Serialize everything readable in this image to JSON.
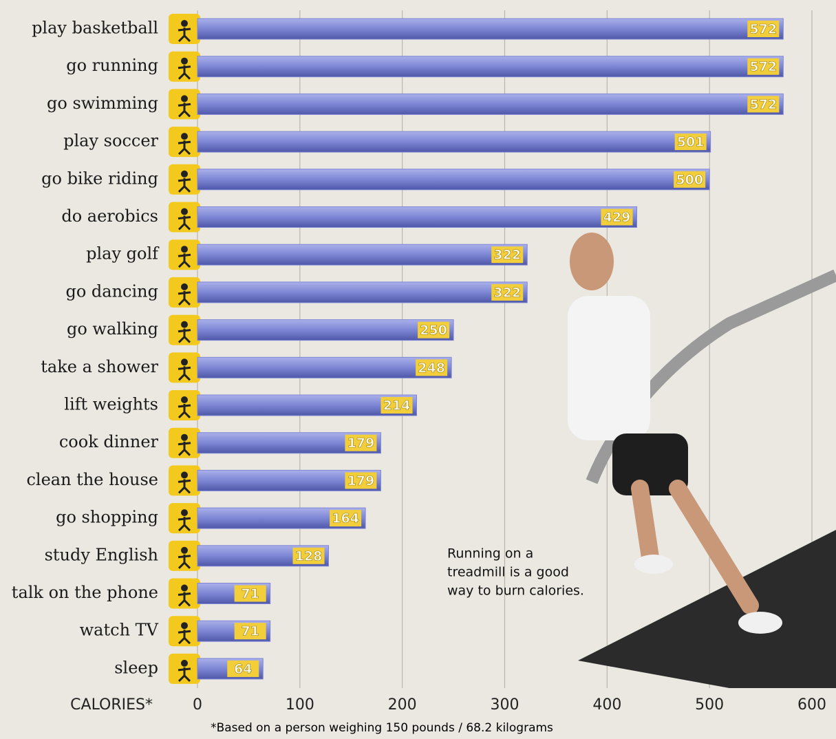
{
  "chart_data": {
    "type": "bar",
    "orientation": "horizontal",
    "categories": [
      "play basketball",
      "go running",
      "go swimming",
      "play soccer",
      "go bike riding",
      "do aerobics",
      "play golf",
      "go dancing",
      "go walking",
      "take a shower",
      "lift weights",
      "cook dinner",
      "clean the house",
      "go shopping",
      "study English",
      "talk on the phone",
      "watch TV",
      "sleep"
    ],
    "values": [
      572,
      572,
      572,
      501,
      500,
      429,
      322,
      322,
      250,
      248,
      214,
      179,
      179,
      164,
      128,
      71,
      71,
      64
    ],
    "color": "#7c86d4",
    "xlim": [
      0,
      600
    ],
    "xticks": [
      0,
      100,
      200,
      300,
      400,
      500,
      600
    ],
    "grid": true,
    "x_label": "CALORIES*",
    "annotation": [
      "Running on a",
      "treadmill is a good",
      "way to burn calories."
    ],
    "footnote": "*Based on a person weighing 150 pounds / 68.2 kilograms"
  }
}
